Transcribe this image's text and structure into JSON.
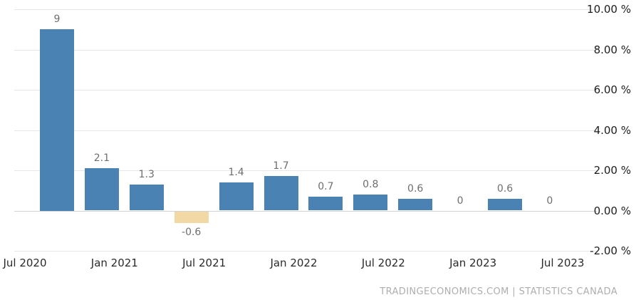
{
  "chart_data": {
    "type": "bar",
    "title": "",
    "xlabel": "",
    "ylabel": "",
    "ylim": [
      -2,
      10
    ],
    "grid": true,
    "legend": false,
    "x_tick_labels": [
      "Jul 2020",
      "Jan 2021",
      "Jul 2021",
      "Jan 2022",
      "Jul 2022",
      "Jan 2023",
      "Jul 2023"
    ],
    "y_ticks": [
      10,
      8,
      6,
      4,
      2,
      0,
      -2
    ],
    "y_tick_labels": [
      "10.00 %",
      "8.00 %",
      "6.00 %",
      "4.00 %",
      "2.00 %",
      "0.00 %",
      "-2.00 %"
    ],
    "values": [
      9,
      2.1,
      1.3,
      -0.6,
      1.4,
      1.7,
      0.7,
      0.8,
      0.6,
      0,
      0.6,
      0
    ],
    "value_labels": [
      "9",
      "2.1",
      "1.3",
      "-0.6",
      "1.4",
      "1.7",
      "0.7",
      "0.8",
      "0.6",
      "0",
      "0.6",
      "0"
    ],
    "bar_color_positive": "#4A82B4",
    "bar_color_negative": "#F2D8A4"
  },
  "footer": {
    "source": "TRADINGECONOMICS.COM | STATISTICS CANADA"
  }
}
